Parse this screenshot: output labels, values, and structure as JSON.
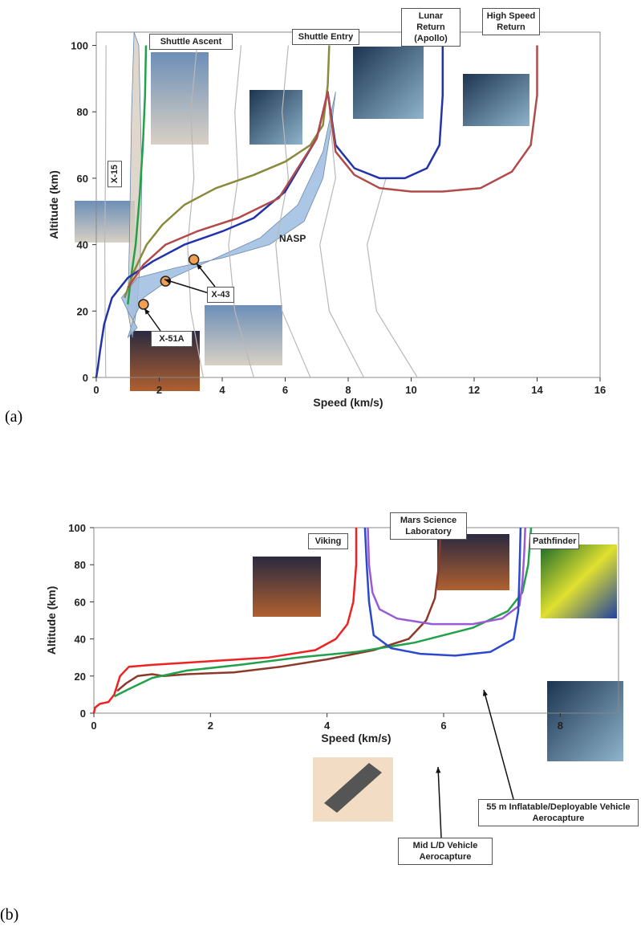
{
  "chart_data": [
    {
      "type": "line",
      "panel_label": "(a)",
      "xlabel": "Speed (km/s)",
      "ylabel": "Altitude (km)",
      "xlim": [
        0,
        16
      ],
      "ylim": [
        0,
        104
      ],
      "xticks": [
        0,
        2,
        4,
        6,
        8,
        10,
        12,
        14,
        16
      ],
      "yticks": [
        0,
        20,
        40,
        60,
        80,
        100
      ],
      "series": [
        {
          "name": "X-15",
          "color": "#d9d0c2",
          "fill": true,
          "x": [
            1.0,
            1.05,
            1.12,
            1.2,
            1.35,
            1.45,
            1.4,
            1.3,
            1.15
          ],
          "values": [
            20,
            40,
            80,
            104,
            100,
            60,
            35,
            22,
            12
          ]
        },
        {
          "name": "NASP",
          "color": "#9dbde2",
          "fill": true,
          "x": [
            0.8,
            1.3,
            2.5,
            4,
            5.5,
            6.6,
            7.2,
            7.5,
            7.6,
            7.2,
            6.4,
            5.2,
            3.8,
            2.4,
            1.5,
            1.2,
            1.0,
            1.3,
            1.0
          ],
          "values": [
            24,
            30,
            33,
            36,
            40,
            47,
            60,
            78,
            86,
            68,
            52,
            42,
            36,
            30,
            24,
            18,
            12,
            15,
            20
          ]
        },
        {
          "name": "Shuttle Ascent",
          "color": "#22a04a",
          "x": [
            1.0,
            1.1,
            1.25,
            1.38,
            1.48,
            1.55,
            1.58
          ],
          "values": [
            22,
            30,
            40,
            55,
            70,
            85,
            100
          ]
        },
        {
          "name": "Shuttle Entry",
          "color": "#8a8a3c",
          "x": [
            7.4,
            7.35,
            7.2,
            6.8,
            6.0,
            5.0,
            3.8,
            2.8,
            2.1,
            1.6,
            1.2,
            0.9
          ],
          "values": [
            100,
            88,
            76,
            70,
            65,
            61,
            57,
            52,
            46,
            40,
            32,
            24
          ]
        },
        {
          "name": "Lunar Return (Apollo)",
          "color": "#2233aa",
          "x": [
            11,
            11,
            10.9,
            10.5,
            9.8,
            9.0,
            8.2,
            7.6,
            7.35,
            7.0,
            6.0,
            5.0,
            4.0,
            2.8,
            1.8,
            1.0,
            0.5,
            0.25,
            0.12,
            0.05,
            0
          ],
          "values": [
            100,
            85,
            70,
            63,
            60,
            60,
            63,
            70,
            86,
            72,
            56,
            48,
            44,
            40,
            35,
            30,
            24,
            16,
            8,
            3,
            0
          ]
        },
        {
          "name": "High Speed Return",
          "color": "#b34a4a",
          "x": [
            14,
            14,
            13.8,
            13.2,
            12.2,
            11,
            10,
            9,
            8.2,
            7.6,
            7.35,
            7.0,
            5.8,
            4.5,
            3.2,
            2.2,
            1.5,
            1.0
          ],
          "values": [
            100,
            85,
            70,
            62,
            57,
            56,
            56,
            57,
            61,
            68,
            86,
            72,
            54,
            48,
            44,
            40,
            34,
            27
          ]
        },
        {
          "name": "X-43",
          "color": "#f0a050",
          "marker": true,
          "x": [
            2.2,
            3.1
          ],
          "values": [
            29,
            35.5
          ]
        },
        {
          "name": "X-51A",
          "color": "#f0a050",
          "marker": true,
          "x": [
            1.5
          ],
          "values": [
            22
          ]
        },
        {
          "color": "#b8b8b8",
          "x": [
            0.3,
            0.28,
            0.27,
            0.29,
            0.3,
            0.31
          ],
          "values": [
            0,
            20,
            40,
            60,
            80,
            100
          ]
        },
        {
          "color": "#b8b8b8",
          "x": [
            3.4,
            3.0,
            2.9,
            3.1,
            3.0,
            3.2
          ],
          "values": [
            0,
            20,
            40,
            60,
            80,
            100
          ]
        },
        {
          "color": "#b8b8b8",
          "x": [
            5.0,
            4.4,
            4.2,
            4.5,
            4.4,
            4.6
          ],
          "values": [
            0,
            20,
            40,
            60,
            80,
            100
          ]
        },
        {
          "color": "#b8b8b8",
          "x": [
            6.8,
            5.9,
            5.7,
            6.1,
            5.9,
            6.1
          ],
          "values": [
            0,
            20,
            40,
            60,
            80,
            100
          ]
        },
        {
          "color": "#b8b8b8",
          "x": [
            8.5,
            7.4,
            7.1,
            7.6,
            7.4
          ],
          "values": [
            0,
            20,
            40,
            60,
            80
          ]
        },
        {
          "color": "#b8b8b8",
          "x": [
            10.2,
            8.9,
            8.6,
            9.2
          ],
          "values": [
            0,
            20,
            40,
            60
          ]
        }
      ]
    },
    {
      "type": "line",
      "panel_label": "(b)",
      "xlabel": "Speed (km/s)",
      "ylabel": "Altitude (km)",
      "xlim": [
        0,
        9
      ],
      "ylim": [
        0,
        100
      ],
      "xticks": [
        0,
        2,
        4,
        6,
        8
      ],
      "yticks": [
        0,
        20,
        40,
        60,
        80,
        100
      ],
      "series": [
        {
          "name": "Viking",
          "color": "#ee2222",
          "x": [
            4.5,
            4.5,
            4.45,
            4.35,
            4.15,
            3.8,
            3.0,
            2.0,
            1.0,
            0.6,
            0.45,
            0.35,
            0.25,
            0.1,
            0.02,
            0
          ],
          "values": [
            100,
            80,
            60,
            48,
            40,
            34,
            30,
            28,
            26,
            25,
            20,
            10,
            6,
            5,
            3,
            0
          ]
        },
        {
          "name": "Mars Science Laboratory",
          "color": "#8b3a2a",
          "x": [
            5.95,
            5.92,
            5.85,
            5.7,
            5.4,
            4.8,
            4.0,
            3.2,
            2.4,
            1.6,
            1.2,
            1.0,
            0.75,
            0.55,
            0.4
          ],
          "values": [
            100,
            80,
            62,
            50,
            40,
            34,
            29,
            25,
            22,
            21,
            20,
            21,
            20,
            16,
            12
          ]
        },
        {
          "name": "Pathfinder",
          "color": "#22a04a",
          "x": [
            7.5,
            7.45,
            7.35,
            7.1,
            6.5,
            5.5,
            4.5,
            3.5,
            2.5,
            1.6,
            1.0,
            0.6,
            0.35
          ],
          "values": [
            100,
            80,
            65,
            55,
            46,
            38,
            33,
            30,
            26,
            23,
            19,
            13,
            9
          ]
        },
        {
          "name": "55 m Inflatable/Deployable Vehicle Aerocapture",
          "color": "#9a5ad6",
          "x": [
            4.7,
            4.72,
            4.78,
            4.9,
            5.2,
            5.8,
            6.5,
            7.0,
            7.3,
            7.35,
            7.38,
            7.4
          ],
          "values": [
            100,
            80,
            65,
            56,
            51,
            48,
            48,
            51,
            58,
            70,
            85,
            100
          ]
        },
        {
          "name": "Mid L/D Vehicle Aerocapture",
          "color": "#2a48d0",
          "x": [
            4.65,
            4.68,
            4.72,
            4.8,
            5.1,
            5.6,
            6.2,
            6.8,
            7.2,
            7.28,
            7.3,
            7.32
          ],
          "values": [
            100,
            80,
            60,
            42,
            35,
            32,
            31,
            33,
            40,
            55,
            75,
            100
          ]
        }
      ]
    }
  ]
}
